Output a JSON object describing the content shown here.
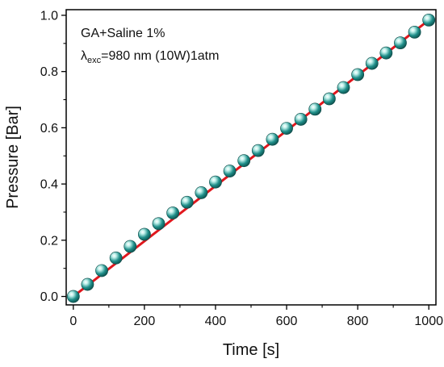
{
  "chart_data": {
    "type": "scatter",
    "title": "",
    "xlabel": "Time [s]",
    "ylabel": "Pressure [Bar]",
    "xlim": [
      -20,
      1020
    ],
    "ylim": [
      -0.03,
      1.02
    ],
    "xticks": [
      0,
      200,
      400,
      600,
      800,
      1000
    ],
    "yticks": [
      0.0,
      0.2,
      0.4,
      0.6,
      0.8,
      1.0
    ],
    "xtick_labels": [
      "0",
      "200",
      "400",
      "600",
      "800",
      "1000"
    ],
    "ytick_labels": [
      "0.0",
      "0.2",
      "0.4",
      "0.6",
      "0.8",
      "1.0"
    ],
    "grid": false,
    "annotations": {
      "line1": "GA+Saline 1%",
      "lambda": "λ",
      "lambda_sub": "exc",
      "line2_rest": "=980 nm (10W)1atm"
    },
    "series": [
      {
        "marker_color": "#1f8f8a",
        "x": [
          0,
          40,
          80,
          120,
          160,
          200,
          240,
          280,
          320,
          360,
          400,
          440,
          480,
          520,
          560,
          600,
          640,
          680,
          720,
          760,
          800,
          840,
          880,
          920,
          960,
          1000
        ],
        "y": [
          0.0,
          0.043,
          0.092,
          0.137,
          0.178,
          0.221,
          0.259,
          0.297,
          0.335,
          0.369,
          0.407,
          0.446,
          0.483,
          0.519,
          0.559,
          0.598,
          0.63,
          0.666,
          0.703,
          0.743,
          0.789,
          0.829,
          0.866,
          0.902,
          0.94,
          0.983
        ]
      }
    ],
    "fit": {
      "color": "#e0171d",
      "x": [
        0,
        1000
      ],
      "y": [
        0.0,
        0.983
      ]
    }
  }
}
